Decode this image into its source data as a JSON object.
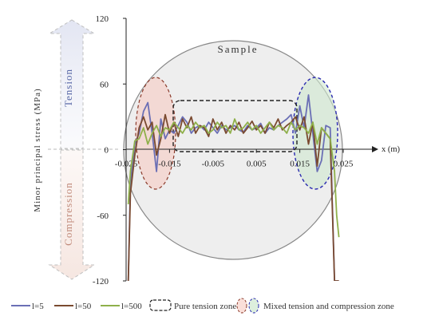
{
  "chart_data": {
    "type": "line",
    "title": "",
    "xlabel": "x (m)",
    "ylabel": "Minor principal stress (MPa)",
    "xlim": [
      -0.025,
      0.025
    ],
    "ylim": [
      -120,
      120
    ],
    "x_ticks": [
      "-0.025",
      "-0.015",
      "-0.005",
      "0.005",
      "0.015",
      "0.025"
    ],
    "y_ticks": [
      "120",
      "60",
      "0",
      "-60",
      "-120"
    ],
    "sample_label": "Sample",
    "tension_label": "Tension",
    "compression_label": "Compression",
    "legend": {
      "pure_tension": "Pure tension zone",
      "mixed": "Mixed tension and compression zone"
    },
    "series": [
      {
        "name": "l=5",
        "color": "#6b6fb5",
        "x": [
          -0.0245,
          -0.024,
          -0.023,
          -0.022,
          -0.021,
          -0.02,
          -0.019,
          -0.018,
          -0.017,
          -0.016,
          -0.015,
          -0.014,
          -0.013,
          -0.012,
          -0.011,
          -0.01,
          -0.009,
          -0.008,
          -0.007,
          -0.006,
          -0.005,
          -0.004,
          -0.003,
          -0.002,
          -0.001,
          0.0,
          0.001,
          0.002,
          0.003,
          0.004,
          0.005,
          0.006,
          0.007,
          0.008,
          0.009,
          0.01,
          0.011,
          0.012,
          0.013,
          0.014,
          0.015,
          0.016,
          0.017,
          0.018,
          0.019,
          0.02,
          0.021,
          0.022,
          0.023,
          0.0235,
          0.024
        ],
        "y": [
          -120,
          -30,
          5,
          15,
          35,
          43,
          15,
          -20,
          28,
          10,
          18,
          15,
          22,
          30,
          25,
          15,
          20,
          22,
          18,
          25,
          20,
          15,
          22,
          18,
          20,
          22,
          18,
          16,
          22,
          18,
          20,
          24,
          15,
          20,
          18,
          22,
          25,
          28,
          32,
          15,
          40,
          20,
          50,
          15,
          -20,
          -10,
          22,
          20,
          -120,
          -120,
          -120
        ]
      },
      {
        "name": "l=50",
        "color": "#7a4a30",
        "x": [
          -0.0245,
          -0.024,
          -0.023,
          -0.022,
          -0.021,
          -0.02,
          -0.019,
          -0.018,
          -0.017,
          -0.016,
          -0.015,
          -0.014,
          -0.013,
          -0.012,
          -0.011,
          -0.01,
          -0.009,
          -0.008,
          -0.007,
          -0.006,
          -0.005,
          -0.004,
          -0.003,
          -0.002,
          -0.001,
          0.0,
          0.001,
          0.002,
          0.003,
          0.004,
          0.005,
          0.006,
          0.007,
          0.008,
          0.009,
          0.01,
          0.011,
          0.012,
          0.013,
          0.014,
          0.015,
          0.016,
          0.017,
          0.018,
          0.019,
          0.02,
          0.021,
          0.022,
          0.023,
          0.0235,
          0.024
        ],
        "y": [
          -120,
          -40,
          -5,
          20,
          30,
          18,
          25,
          -5,
          10,
          32,
          15,
          25,
          12,
          28,
          20,
          30,
          15,
          22,
          20,
          12,
          28,
          18,
          25,
          15,
          22,
          18,
          25,
          15,
          20,
          26,
          18,
          22,
          15,
          25,
          20,
          28,
          18,
          22,
          25,
          30,
          18,
          30,
          5,
          25,
          -15,
          20,
          15,
          10,
          -120,
          -120,
          -120
        ]
      },
      {
        "name": "l=500",
        "color": "#8fb04a",
        "x": [
          -0.0245,
          -0.024,
          -0.023,
          -0.022,
          -0.021,
          -0.02,
          -0.019,
          -0.018,
          -0.017,
          -0.016,
          -0.015,
          -0.014,
          -0.013,
          -0.012,
          -0.011,
          -0.01,
          -0.009,
          -0.008,
          -0.007,
          -0.006,
          -0.005,
          -0.004,
          -0.003,
          -0.002,
          -0.001,
          0.0,
          0.001,
          0.002,
          0.003,
          0.004,
          0.005,
          0.006,
          0.007,
          0.008,
          0.009,
          0.01,
          0.011,
          0.012,
          0.013,
          0.014,
          0.015,
          0.016,
          0.017,
          0.018,
          0.019,
          0.02,
          0.021,
          0.022,
          0.023,
          0.0235,
          0.024
        ],
        "y": [
          -50,
          -20,
          8,
          10,
          20,
          5,
          15,
          22,
          12,
          20,
          18,
          25,
          20,
          15,
          22,
          18,
          25,
          20,
          22,
          15,
          18,
          25,
          20,
          22,
          15,
          28,
          18,
          20,
          25,
          18,
          22,
          15,
          20,
          25,
          18,
          22,
          20,
          15,
          25,
          18,
          22,
          20,
          15,
          25,
          5,
          20,
          15,
          10,
          -20,
          -60,
          -80
        ]
      }
    ]
  }
}
